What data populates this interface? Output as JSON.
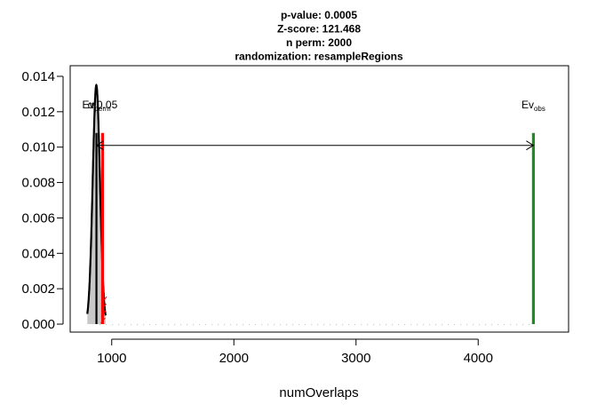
{
  "chart_data": {
    "type": "line",
    "title_lines": [
      "p-value:  0.0005",
      "Z-score:  121.468",
      "n perm:  2000",
      "randomization:  resampleRegions"
    ],
    "xlabel": "numOverlaps",
    "ylabel": "",
    "xlim": [
      660,
      4740
    ],
    "ylim": [
      -0.00045,
      0.0146
    ],
    "x_ticks": [
      1000,
      2000,
      3000,
      4000
    ],
    "x_tick_labels": [
      "1000",
      "2000",
      "3000",
      "4000"
    ],
    "y_ticks": [
      0,
      0.002,
      0.004,
      0.006,
      0.008,
      0.01,
      0.012,
      0.014
    ],
    "y_tick_labels": [
      "0.000",
      "0.002",
      "0.004",
      "0.006",
      "0.008",
      "0.010",
      "0.012",
      "0.014"
    ],
    "permuted_distribution": {
      "mean": 874,
      "sd": 29.5,
      "peak_density": 0.0135,
      "x_range": [
        800,
        950
      ],
      "fill_color": "#c8c8c8",
      "line_color": "#000000"
    },
    "ev_perm_mean_line": {
      "x": 875,
      "y_top": 0.0108,
      "color": "#000000"
    },
    "alpha_threshold_line": {
      "x": 925,
      "y_top": 0.0108,
      "color": "#ff0000"
    },
    "ev_obs_line": {
      "x": 4452,
      "y_top": 0.0108,
      "color": "#228b22"
    },
    "distance_arrow": {
      "x_start": 875,
      "x_end": 4452,
      "y": 0.0101,
      "color": "#000000"
    },
    "rug": {
      "x_from": 900,
      "x_to": 4452,
      "color": "#cccccc",
      "y": 0.0
    },
    "red_ticks_x": [
      925,
      929,
      933,
      937
    ],
    "annotations": {
      "ev_obs": {
        "main": "Ev",
        "sub": "obs",
        "x": 4452,
        "y": 0.0122
      },
      "ev_perm": {
        "main": "Ev",
        "sub": "perm",
        "x": 875,
        "y": 0.0122
      },
      "alpha": {
        "text": "α 0.05",
        "x": 925,
        "y": 0.0122
      }
    }
  }
}
